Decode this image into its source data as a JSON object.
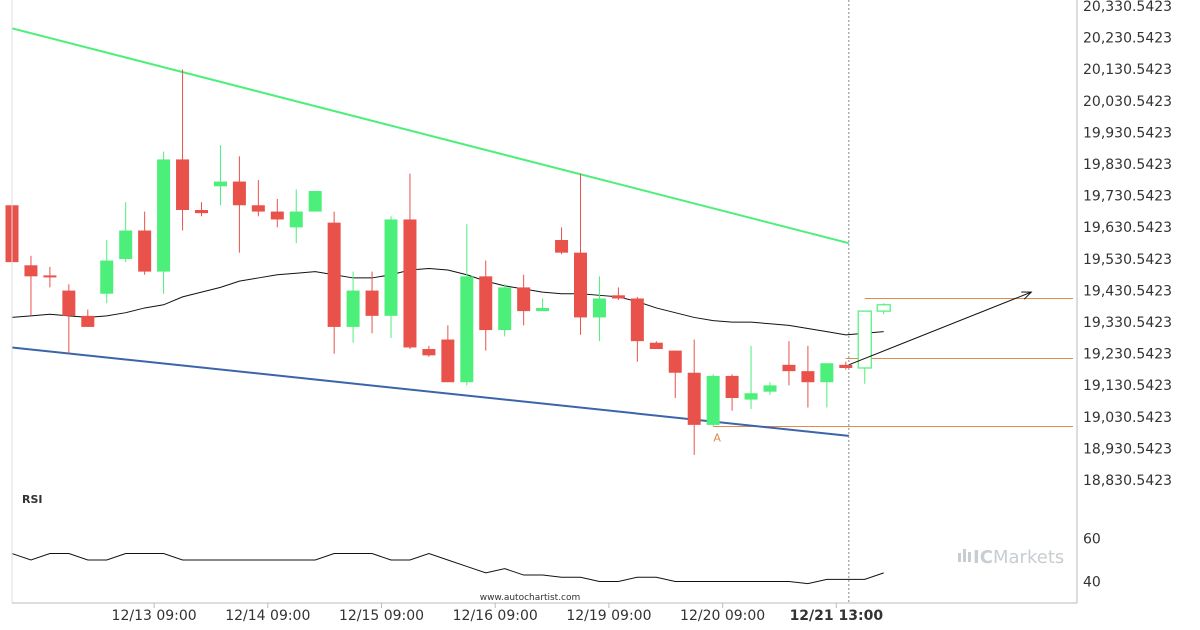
{
  "chart_data": {
    "type": "candlestick",
    "price_axis": {
      "min": 18830.5423,
      "max": 20330.5423,
      "ticks": [
        "20,330.5423",
        "20,230.5423",
        "20,130.5423",
        "20,030.5423",
        "19,930.5423",
        "19,830.5423",
        "19,730.5423",
        "19,630.5423",
        "19,530.5423",
        "19,430.5423",
        "19,330.5423",
        "19,230.5423",
        "19,130.5423",
        "19,030.5423",
        "18,930.5423",
        "18,830.5423"
      ],
      "tick_values": [
        20330.5423,
        20230.5423,
        20130.5423,
        20030.5423,
        19930.5423,
        19830.5423,
        19730.5423,
        19630.5423,
        19530.5423,
        19430.5423,
        19330.5423,
        19230.5423,
        19130.5423,
        19030.5423,
        18930.5423,
        18830.5423
      ]
    },
    "x_axis": {
      "labels": [
        "12/13 09:00",
        "12/14 09:00",
        "12/15 09:00",
        "12/16 09:00",
        "12/19 09:00",
        "12/20 09:00",
        "12/21 13:00"
      ],
      "label_bars": [
        7.5,
        13.5,
        19.5,
        25.5,
        31.5,
        37.5,
        43.5
      ],
      "bold_label": "12/21 13:00",
      "bar_count": 47
    },
    "candles": [
      {
        "i": 0,
        "o": 19700,
        "h": 19700,
        "l": 19520,
        "c": 19520,
        "d": "down"
      },
      {
        "i": 1,
        "o": 19510,
        "h": 19540,
        "l": 19350,
        "c": 19475,
        "d": "down"
      },
      {
        "i": 2,
        "o": 19478,
        "h": 19505,
        "l": 19440,
        "c": 19475,
        "d": "down"
      },
      {
        "i": 3,
        "o": 19430,
        "h": 19450,
        "l": 19230,
        "c": 19350,
        "d": "down"
      },
      {
        "i": 4,
        "o": 19350,
        "h": 19370,
        "l": 19315,
        "c": 19315,
        "d": "down"
      },
      {
        "i": 5,
        "o": 19420,
        "h": 19590,
        "l": 19390,
        "c": 19525,
        "d": "up"
      },
      {
        "i": 6,
        "o": 19530,
        "h": 19710,
        "l": 19520,
        "c": 19620,
        "d": "up"
      },
      {
        "i": 7,
        "o": 19620,
        "h": 19680,
        "l": 19480,
        "c": 19490,
        "d": "down"
      },
      {
        "i": 8,
        "o": 19490,
        "h": 19870,
        "l": 19420,
        "c": 19845,
        "d": "up"
      },
      {
        "i": 9,
        "o": 19845,
        "h": 20130,
        "l": 19620,
        "c": 19685,
        "d": "down"
      },
      {
        "i": 10,
        "o": 19685,
        "h": 19710,
        "l": 19665,
        "c": 19675,
        "d": "down"
      },
      {
        "i": 11,
        "o": 19760,
        "h": 19890,
        "l": 19700,
        "c": 19775,
        "d": "up"
      },
      {
        "i": 12,
        "o": 19775,
        "h": 19855,
        "l": 19550,
        "c": 19700,
        "d": "down"
      },
      {
        "i": 13,
        "o": 19700,
        "h": 19780,
        "l": 19665,
        "c": 19680,
        "d": "down"
      },
      {
        "i": 14,
        "o": 19680,
        "h": 19720,
        "l": 19630,
        "c": 19655,
        "d": "down"
      },
      {
        "i": 15,
        "o": 19630,
        "h": 19750,
        "l": 19580,
        "c": 19680,
        "d": "up"
      },
      {
        "i": 16,
        "o": 19680,
        "h": 19745,
        "l": 19680,
        "c": 19745,
        "d": "up"
      },
      {
        "i": 17,
        "o": 19645,
        "h": 19680,
        "l": 19230,
        "c": 19315,
        "d": "down"
      },
      {
        "i": 18,
        "o": 19315,
        "h": 19490,
        "l": 19265,
        "c": 19430,
        "d": "up"
      },
      {
        "i": 19,
        "o": 19430,
        "h": 19490,
        "l": 19295,
        "c": 19350,
        "d": "down"
      },
      {
        "i": 20,
        "o": 19350,
        "h": 19665,
        "l": 19280,
        "c": 19655,
        "d": "up"
      },
      {
        "i": 21,
        "o": 19655,
        "h": 19800,
        "l": 19245,
        "c": 19250,
        "d": "down"
      },
      {
        "i": 22,
        "o": 19245,
        "h": 19255,
        "l": 19220,
        "c": 19225,
        "d": "down"
      },
      {
        "i": 23,
        "o": 19275,
        "h": 19320,
        "l": 19140,
        "c": 19140,
        "d": "down"
      },
      {
        "i": 24,
        "o": 19140,
        "h": 19640,
        "l": 19130,
        "c": 19475,
        "d": "up"
      },
      {
        "i": 25,
        "o": 19475,
        "h": 19525,
        "l": 19240,
        "c": 19305,
        "d": "down"
      },
      {
        "i": 26,
        "o": 19305,
        "h": 19450,
        "l": 19285,
        "c": 19440,
        "d": "up"
      },
      {
        "i": 27,
        "o": 19440,
        "h": 19480,
        "l": 19320,
        "c": 19365,
        "d": "down"
      },
      {
        "i": 28,
        "o": 19365,
        "h": 19405,
        "l": 19365,
        "c": 19375,
        "d": "up"
      },
      {
        "i": 29,
        "o": 19590,
        "h": 19630,
        "l": 19545,
        "c": 19550,
        "d": "down"
      },
      {
        "i": 30,
        "o": 19550,
        "h": 19800,
        "l": 19290,
        "c": 19345,
        "d": "down"
      },
      {
        "i": 31,
        "o": 19345,
        "h": 19475,
        "l": 19270,
        "c": 19405,
        "d": "up"
      },
      {
        "i": 32,
        "o": 19415,
        "h": 19440,
        "l": 19400,
        "c": 19405,
        "d": "down"
      },
      {
        "i": 33,
        "o": 19405,
        "h": 19410,
        "l": 19205,
        "c": 19270,
        "d": "down"
      },
      {
        "i": 34,
        "o": 19265,
        "h": 19270,
        "l": 19245,
        "c": 19245,
        "d": "down"
      },
      {
        "i": 35,
        "o": 19240,
        "h": 19240,
        "l": 19090,
        "c": 19170,
        "d": "down"
      },
      {
        "i": 36,
        "o": 19170,
        "h": 19275,
        "l": 18910,
        "c": 19005,
        "d": "down"
      },
      {
        "i": 37,
        "o": 19005,
        "h": 19165,
        "l": 19000,
        "c": 19160,
        "d": "up"
      },
      {
        "i": 38,
        "o": 19160,
        "h": 19165,
        "l": 19050,
        "c": 19090,
        "d": "down"
      },
      {
        "i": 39,
        "o": 19085,
        "h": 19255,
        "l": 19055,
        "c": 19105,
        "d": "up"
      },
      {
        "i": 40,
        "o": 19110,
        "h": 19140,
        "l": 19100,
        "c": 19130,
        "d": "up"
      },
      {
        "i": 41,
        "o": 19195,
        "h": 19270,
        "l": 19130,
        "c": 19175,
        "d": "down"
      },
      {
        "i": 42,
        "o": 19175,
        "h": 19255,
        "l": 19060,
        "c": 19140,
        "d": "down"
      },
      {
        "i": 43,
        "o": 19140,
        "h": 19200,
        "l": 19060,
        "c": 19200,
        "d": "up"
      },
      {
        "i": 44,
        "o": 19195,
        "h": 19205,
        "l": 19180,
        "c": 19185,
        "d": "down"
      }
    ],
    "projected_candles": [
      {
        "i": 45,
        "o": 19185,
        "h": 19365,
        "l": 19135,
        "c": 19365,
        "d": "up"
      },
      {
        "i": 46,
        "o": 19365,
        "h": 19390,
        "l": 19355,
        "c": 19385,
        "d": "up"
      }
    ],
    "moving_average": [
      19345,
      19350,
      19355,
      19350,
      19345,
      19350,
      19360,
      19375,
      19385,
      19410,
      19425,
      19440,
      19460,
      19470,
      19480,
      19485,
      19490,
      19480,
      19470,
      19470,
      19480,
      19495,
      19500,
      19495,
      19480,
      19460,
      19445,
      19435,
      19425,
      19420,
      19420,
      19415,
      19410,
      19395,
      19375,
      19360,
      19345,
      19335,
      19330,
      19330,
      19325,
      19320,
      19310,
      19300,
      19290,
      19295,
      19300
    ],
    "upper_trendline": {
      "from": {
        "i": 0,
        "v": 20260
      },
      "to": {
        "i": 44,
        "v": 19580
      },
      "color": "#4cef7a"
    },
    "lower_trendline": {
      "from": {
        "i": 0,
        "v": 19250
      },
      "to": {
        "i": 44,
        "v": 18970
      },
      "color": "#3c64aa"
    },
    "level_lines": [
      {
        "value": 19405,
        "from_bar": 45,
        "color": "#e08a4c"
      },
      {
        "value": 19215,
        "from_bar": 44,
        "color": "#e08a4c"
      },
      {
        "value": 19000,
        "from_bar": 37,
        "color": "#e08a4c"
      }
    ],
    "forecast_arrow": {
      "from": {
        "i": 44,
        "v": 19195
      },
      "to": {
        "i": 54,
        "v": 19425
      }
    },
    "marker": {
      "label": "A",
      "bar": 37,
      "value": 18965
    },
    "current_time_bar": 44,
    "rsi": {
      "title": "RSI",
      "ticks": [
        "60",
        "40"
      ],
      "tick_values": [
        60,
        40
      ],
      "range": [
        30,
        70
      ],
      "values": [
        53,
        50,
        53,
        53,
        50,
        50,
        53,
        53,
        53,
        50,
        50,
        50,
        50,
        50,
        50,
        50,
        50,
        53,
        53,
        53,
        50,
        50,
        53,
        50,
        47,
        44,
        46,
        43,
        43,
        42,
        42,
        40,
        40,
        42,
        42,
        40,
        40,
        40,
        40,
        40,
        40,
        40,
        39,
        41,
        41,
        41,
        44
      ]
    },
    "colors": {
      "up": "#4cef7a",
      "down": "#e8524a",
      "ma": "#111111",
      "axis": "#bbbbbb",
      "grid_vline": "#888888"
    }
  },
  "watermark": "www.autochartist.com",
  "brand": {
    "ic": "IC",
    "rest": "Markets"
  }
}
